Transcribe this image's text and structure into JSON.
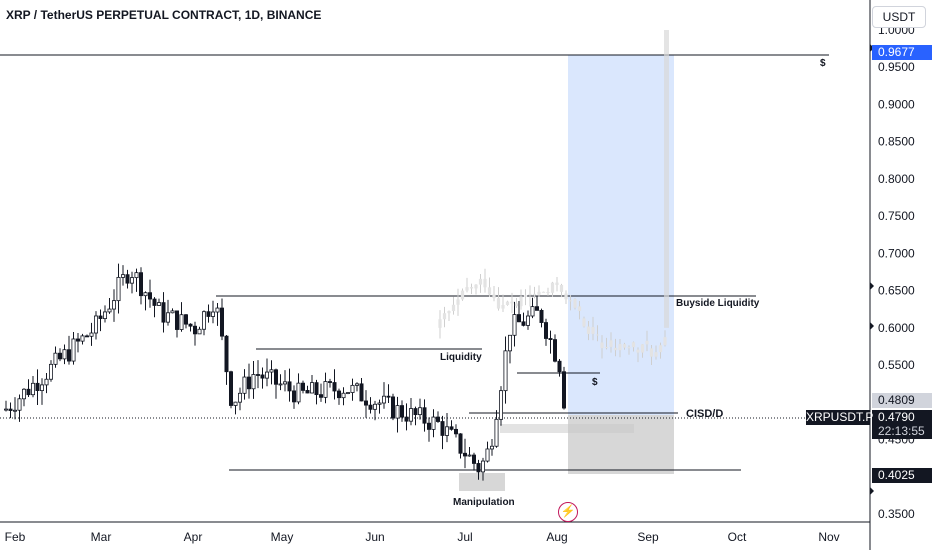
{
  "header": {
    "title": "XRP / TetherUS PERPETUAL CONTRACT, 1D, BINANCE",
    "currency": "USDT"
  },
  "price_axis": {
    "ticks": [
      "1.0000",
      "0.9500",
      "0.9000",
      "0.8500",
      "0.8000",
      "0.7500",
      "0.7000",
      "0.6500",
      "0.6000",
      "0.5500",
      "0.5000",
      "0.4500",
      "0.4000",
      "0.3500"
    ],
    "tick_values": [
      1.0,
      0.95,
      0.9,
      0.85,
      0.8,
      0.75,
      0.7,
      0.65,
      0.6,
      0.55,
      0.5,
      0.45,
      0.4,
      0.35
    ]
  },
  "time_axis": {
    "labels": [
      "Feb",
      "Mar",
      "Apr",
      "May",
      "Jun",
      "Jul",
      "Aug",
      "Sep",
      "Oct",
      "Nov"
    ]
  },
  "tags": {
    "target": "0.9677",
    "prev_close": "0.4809",
    "last_price": "0.4790",
    "countdown": "22:13:55",
    "stop": "0.4025",
    "symbol": "XRPUSDT.P"
  },
  "annotations": {
    "top_dollar": "$",
    "buyside_liquidity": "Buyside Liquidity",
    "liquidity": "Liquidity",
    "mid_dollar": "$",
    "cisd": "CISD/D",
    "manipulation": "Manipulation"
  },
  "chart_data": {
    "type": "candlestick",
    "title": "XRP / TetherUS PERPETUAL CONTRACT, 1D, BINANCE",
    "ylim": [
      0.35,
      1.0
    ],
    "x_labels": [
      "Feb",
      "Mar",
      "Apr",
      "May",
      "Jun",
      "Jul",
      "Aug",
      "Sep",
      "Oct",
      "Nov"
    ],
    "close_path": [
      [
        "Feb",
        0.49
      ],
      [
        "Feb",
        0.52
      ],
      [
        "Mar",
        0.6
      ],
      [
        "Mar",
        0.68
      ],
      [
        "Mar",
        0.62
      ],
      [
        "Apr",
        0.6
      ],
      [
        "Apr",
        0.64
      ],
      [
        "Apr",
        0.5
      ],
      [
        "May",
        0.54
      ],
      [
        "May",
        0.51
      ],
      [
        "Jun",
        0.52
      ],
      [
        "Jun",
        0.49
      ],
      [
        "Jul",
        0.47
      ],
      [
        "Jul",
        0.41
      ],
      [
        "Jul",
        0.44
      ],
      [
        "Jul",
        0.6
      ],
      [
        "Aug",
        0.62
      ],
      [
        "Aug",
        0.55
      ],
      [
        "Aug",
        0.4809
      ],
      [
        "Aug",
        0.479
      ]
    ],
    "levels": {
      "target": 0.9677,
      "buyside_liquidity": 0.643,
      "liquidity": 0.57,
      "cisd": 0.48,
      "range_low": 0.4105,
      "stop": 0.4025
    },
    "position": {
      "type": "long",
      "entry": 0.4809,
      "target": 0.9677,
      "stop": 0.4025
    }
  }
}
